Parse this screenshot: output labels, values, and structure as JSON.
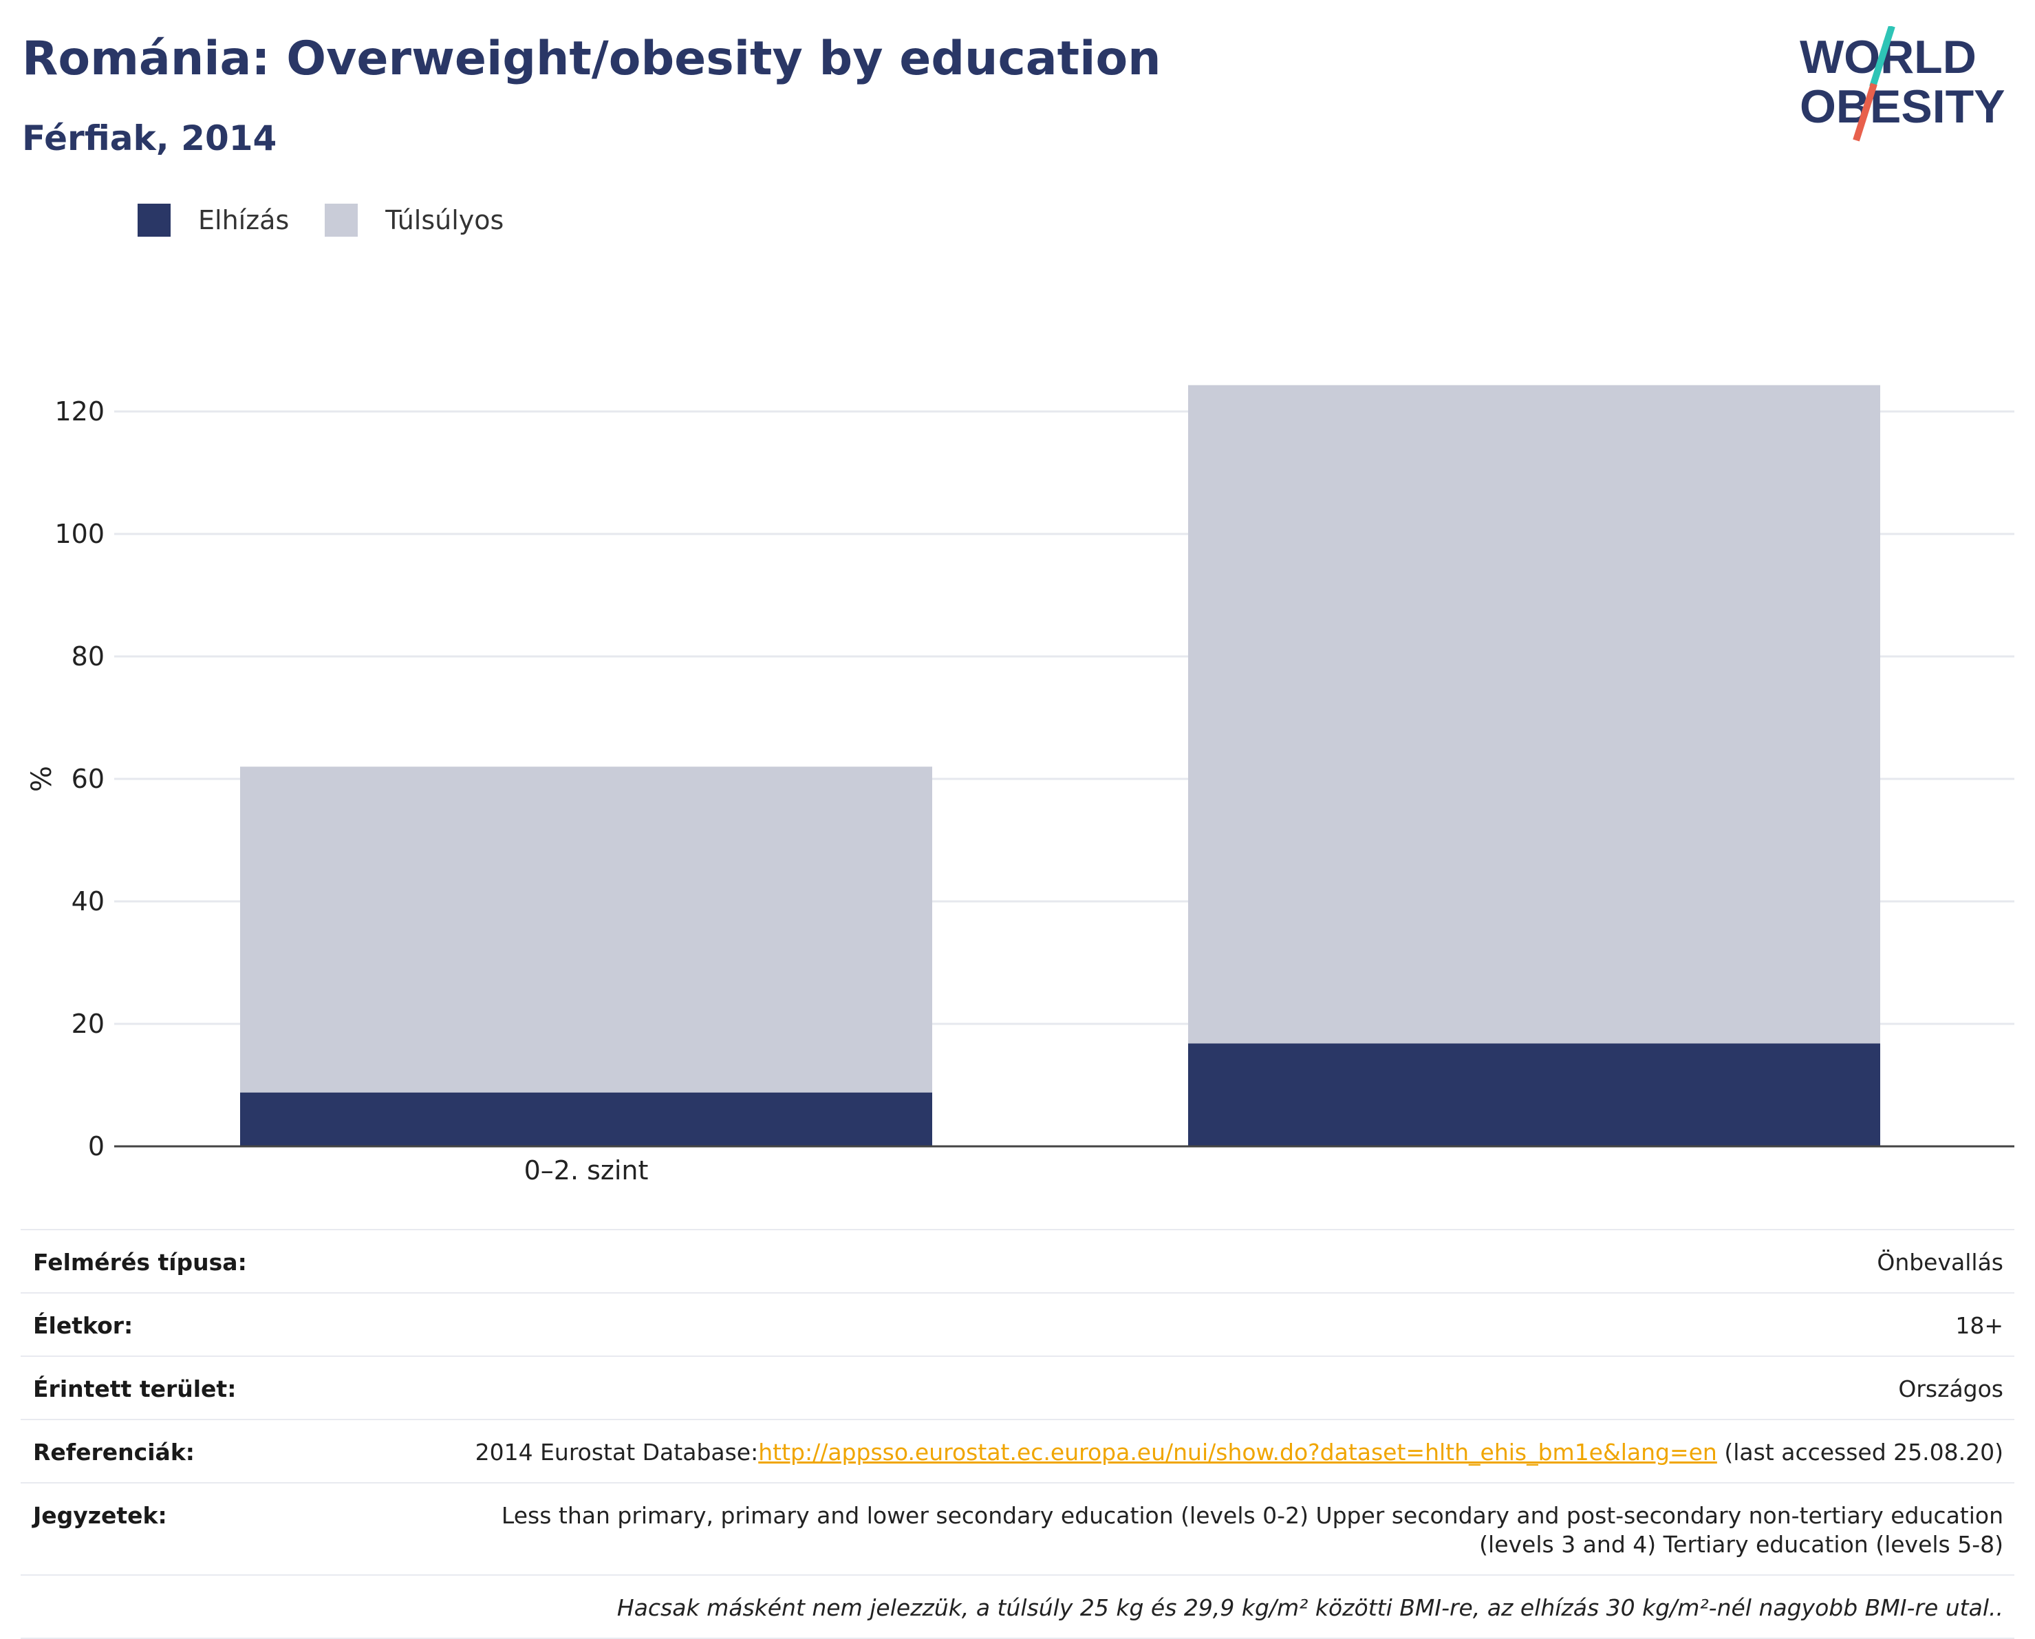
{
  "title": "Románia: Overweight/obesity by education",
  "subtitle": "Férfiak, 2014",
  "logo": {
    "line1": "WORLD",
    "line2": "OBESITY",
    "accent_colors": [
      "#2ec4b6",
      "#e8604c"
    ]
  },
  "legend": [
    {
      "label": "Elhízás",
      "color": "#2a3766"
    },
    {
      "label": "Túlsúlyos",
      "color": "#c9ccd8"
    }
  ],
  "chart_data": {
    "type": "bar",
    "stacked": true,
    "categories": [
      "0–2. szint",
      ""
    ],
    "series": [
      {
        "name": "Elhízás",
        "color": "#2a3766",
        "values": [
          8.8,
          16.8
        ]
      },
      {
        "name": "Túlsúlyos",
        "color": "#c9ccd8",
        "values": [
          53.2,
          107.5
        ]
      }
    ],
    "ylabel": "%",
    "ylim": [
      0,
      130
    ],
    "yticks": [
      0,
      20,
      40,
      60,
      80,
      100,
      120
    ],
    "grid": true,
    "legend_position": "top-left"
  },
  "info": {
    "survey_label": "Felmérés típusa:",
    "survey_value": "Önbevallás",
    "age_label": "Életkor:",
    "age_value": "18+",
    "area_label": "Érintett terület:",
    "area_value": "Országos",
    "ref_label": "Referenciák:",
    "ref_prefix": "2014 Eurostat Database:",
    "ref_link": "http://appsso.eurostat.ec.europa.eu/nui/show.do?dataset=hlth_ehis_bm1e&lang=en",
    "ref_suffix": " (last accessed 25.08.20)",
    "notes_label": "Jegyzetek:",
    "notes_line1": "Less than primary, primary and lower secondary education (levels 0-2) Upper secondary and post-secondary non-tertiary education",
    "notes_line2": "(levels 3 and 4) Tertiary education (levels 5-8)",
    "footnote": "Hacsak másként nem jelezzük, a túlsúly 25 kg és 29,9 kg/m² közötti BMI-re, az elhízás 30 kg/m²-nél nagyobb BMI-re utal.."
  }
}
